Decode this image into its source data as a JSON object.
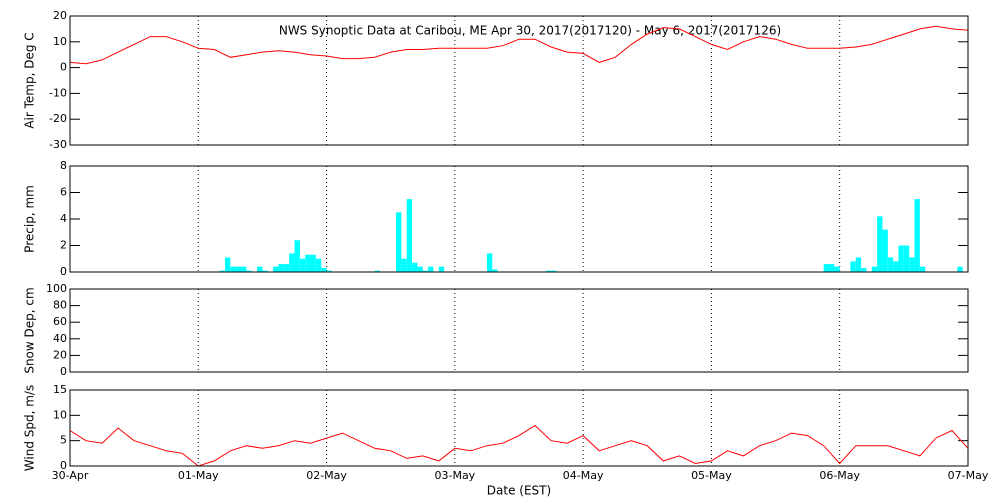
{
  "chart_data": [
    {
      "type": "line",
      "title": "NWS Synoptic Data at Caribou, ME   Apr 30, 2017(2017120) - May  6, 2017(2017126)",
      "ylabel": "Air Temp, Deg C",
      "color": "#ff0000",
      "grid": true,
      "ylim": [
        -30,
        20
      ],
      "yticks": [
        -30,
        -20,
        -10,
        0,
        10,
        20
      ],
      "x": [
        0,
        3,
        6,
        9,
        12,
        15,
        18,
        21,
        24,
        27,
        30,
        33,
        36,
        39,
        42,
        45,
        48,
        51,
        54,
        57,
        60,
        63,
        66,
        69,
        72,
        75,
        78,
        81,
        84,
        87,
        90,
        93,
        96,
        99,
        102,
        105,
        108,
        111,
        114,
        117,
        120,
        123,
        126,
        129,
        132,
        135,
        138,
        141,
        144,
        147,
        150,
        153,
        156,
        159,
        162,
        165,
        168
      ],
      "values": [
        2,
        1.5,
        3,
        6,
        9,
        12,
        12,
        10,
        7.5,
        7,
        4,
        5,
        6,
        6.5,
        6,
        5,
        4.5,
        3.5,
        3.5,
        4,
        6,
        7,
        7,
        7.5,
        7.5,
        7.5,
        7.5,
        8.5,
        11,
        11,
        8,
        6,
        5.5,
        2,
        4,
        9,
        13,
        15.5,
        15,
        12,
        9,
        7,
        10,
        12,
        11,
        9,
        7.5,
        7.5,
        7.5,
        8,
        9,
        11,
        13,
        15,
        16,
        15,
        14.5
      ]
    },
    {
      "type": "bar",
      "ylabel": "Precip, mm",
      "color": "#00ffff",
      "grid": true,
      "ylim": [
        0,
        8
      ],
      "yticks": [
        0,
        2,
        4,
        6,
        8
      ],
      "x": [
        28,
        29,
        30,
        31,
        32,
        33,
        35,
        36,
        38,
        39,
        40,
        41,
        42,
        43,
        44,
        45,
        46,
        47,
        48,
        57,
        61,
        62,
        63,
        64,
        65,
        66,
        67,
        69,
        78,
        79,
        89,
        90,
        141,
        142,
        143,
        146,
        147,
        148,
        150,
        151,
        152,
        153,
        154,
        155,
        156,
        157,
        158,
        159,
        166
      ],
      "values": [
        0.1,
        1.1,
        0.4,
        0.4,
        0.4,
        0.1,
        0.4,
        0.1,
        0.4,
        0.6,
        0.6,
        1.4,
        2.4,
        1.0,
        1.3,
        1.3,
        1.0,
        0.3,
        0.1,
        0.1,
        4.5,
        1.0,
        5.5,
        0.7,
        0.4,
        0.1,
        0.4,
        0.4,
        1.4,
        0.2,
        0.1,
        0.1,
        0.6,
        0.6,
        0.4,
        0.8,
        1.1,
        0.3,
        0.4,
        4.2,
        3.2,
        1.1,
        0.8,
        2.0,
        2.0,
        1.1,
        5.5,
        0.4,
        0.4
      ]
    },
    {
      "type": "line",
      "ylabel": "Snow Dep, cm",
      "color": "#ff0000",
      "grid": true,
      "ylim": [
        0,
        100
      ],
      "yticks": [
        0,
        20,
        40,
        60,
        80,
        100
      ]
    },
    {
      "type": "line",
      "ylabel": "Wind Spd, m/s",
      "xlabel": "Date (EST)",
      "color": "#ff0000",
      "grid": true,
      "ylim": [
        0,
        15
      ],
      "yticks": [
        0,
        5,
        10,
        15
      ],
      "xlim": [
        0,
        168
      ],
      "xticks": [
        {
          "value": 0,
          "label": "30-Apr"
        },
        {
          "value": 24,
          "label": "01-May"
        },
        {
          "value": 48,
          "label": "02-May"
        },
        {
          "value": 72,
          "label": "03-May"
        },
        {
          "value": 96,
          "label": "04-May"
        },
        {
          "value": 120,
          "label": "05-May"
        },
        {
          "value": 144,
          "label": "06-May"
        },
        {
          "value": 168,
          "label": "07-May"
        }
      ],
      "x": [
        0,
        3,
        6,
        9,
        12,
        15,
        18,
        21,
        24,
        27,
        30,
        33,
        36,
        39,
        42,
        45,
        48,
        51,
        54,
        57,
        60,
        63,
        66,
        69,
        72,
        75,
        78,
        81,
        84,
        87,
        90,
        93,
        96,
        99,
        102,
        105,
        108,
        111,
        114,
        117,
        120,
        123,
        126,
        129,
        132,
        135,
        138,
        141,
        144,
        147,
        150,
        153,
        156,
        159,
        162,
        165,
        168
      ],
      "values": [
        7,
        5,
        4.5,
        7.5,
        5,
        4,
        3,
        2.5,
        0,
        1,
        3,
        4,
        3.5,
        4,
        5,
        4.5,
        5.5,
        6.5,
        5,
        3.5,
        3,
        1.5,
        2,
        1,
        3.5,
        3,
        4,
        4.5,
        6,
        8,
        5,
        4.5,
        6,
        3,
        4,
        5,
        4,
        1,
        2,
        0.5,
        1,
        3,
        2,
        4,
        5,
        6.5,
        6,
        4,
        0.5,
        4,
        4,
        4,
        3,
        2,
        5.5,
        7,
        3.5
      ]
    }
  ]
}
